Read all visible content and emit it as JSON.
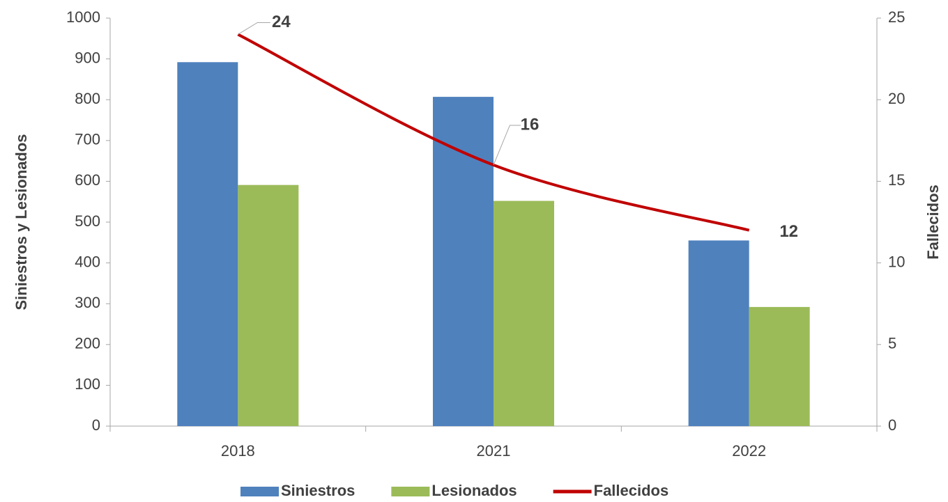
{
  "chart_data": {
    "type": "bar",
    "categories": [
      "2018",
      "2021",
      "2022"
    ],
    "series": [
      {
        "name": "Siniestros",
        "color": "#4f81bd",
        "values": [
          892,
          807,
          455
        ]
      },
      {
        "name": "Lesionados",
        "color": "#9bbb59",
        "values": [
          591,
          552,
          292
        ]
      },
      {
        "name": "Fallecidos",
        "color": "#c00000",
        "type": "line",
        "axis": "y2",
        "values": [
          24,
          16,
          12
        ]
      }
    ],
    "ylabel": "Siniestros y Lesionados",
    "y2label": "Fallecidos",
    "ylim": [
      0,
      1000
    ],
    "yticks": [
      0,
      100,
      200,
      300,
      400,
      500,
      600,
      700,
      800,
      900,
      1000
    ],
    "y2lim": [
      0,
      25
    ],
    "y2ticks": [
      0,
      5,
      10,
      15,
      20,
      25
    ],
    "legend": "bottom"
  }
}
